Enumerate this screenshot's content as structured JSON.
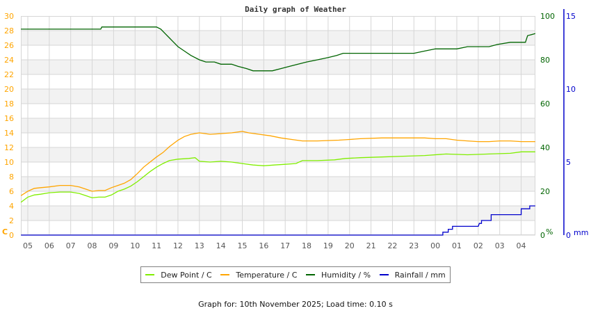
{
  "chart_data": {
    "type": "line",
    "title": "Daily graph of Weather",
    "x_axis": {
      "tick_labels": [
        "05",
        "06",
        "07",
        "08",
        "09",
        "10",
        "11",
        "12",
        "13",
        "14",
        "15",
        "16",
        "17",
        "18",
        "19",
        "20",
        "21",
        "22",
        "23",
        "00",
        "01",
        "02",
        "03",
        "04"
      ],
      "range_hours_from_05": [
        -0.32,
        23.66
      ]
    },
    "axes": {
      "temperature": {
        "label": "C",
        "side": "left",
        "ylim": [
          0,
          30
        ],
        "ticks": [
          0,
          2,
          4,
          6,
          8,
          10,
          12,
          14,
          16,
          18,
          20,
          22,
          24,
          26,
          28,
          30
        ],
        "color": "#ffa500"
      },
      "humidity": {
        "label": "%",
        "side": "right",
        "ylim": [
          0,
          100
        ],
        "ticks": [
          0,
          20,
          40,
          60,
          80,
          100
        ],
        "color": "#006400"
      },
      "rainfall": {
        "label": "mm",
        "side": "right",
        "ylim": [
          0,
          15
        ],
        "ticks": [
          0,
          5,
          10,
          15
        ],
        "color": "#0000cc"
      }
    },
    "grid": true,
    "legend_position": "bottom",
    "series": [
      {
        "name": "Dew Point / C",
        "axis": "temperature",
        "color": "#80ee00",
        "points": [
          [
            -0.32,
            4.5
          ],
          [
            0.0,
            5.2
          ],
          [
            0.3,
            5.5
          ],
          [
            0.6,
            5.6
          ],
          [
            1.0,
            5.8
          ],
          [
            1.5,
            5.9
          ],
          [
            2.0,
            5.9
          ],
          [
            2.4,
            5.7
          ],
          [
            2.7,
            5.4
          ],
          [
            3.0,
            5.1
          ],
          [
            3.3,
            5.2
          ],
          [
            3.6,
            5.2
          ],
          [
            3.9,
            5.5
          ],
          [
            4.2,
            6.0
          ],
          [
            4.5,
            6.3
          ],
          [
            4.8,
            6.7
          ],
          [
            5.1,
            7.3
          ],
          [
            5.4,
            8.0
          ],
          [
            5.7,
            8.7
          ],
          [
            6.0,
            9.3
          ],
          [
            6.3,
            9.8
          ],
          [
            6.6,
            10.2
          ],
          [
            7.0,
            10.4
          ],
          [
            7.5,
            10.5
          ],
          [
            7.8,
            10.6
          ],
          [
            8.0,
            10.1
          ],
          [
            8.5,
            10.0
          ],
          [
            9.0,
            10.1
          ],
          [
            9.5,
            10.0
          ],
          [
            10.0,
            9.8
          ],
          [
            10.5,
            9.6
          ],
          [
            11.0,
            9.5
          ],
          [
            11.5,
            9.6
          ],
          [
            12.0,
            9.7
          ],
          [
            12.5,
            9.8
          ],
          [
            12.8,
            10.2
          ],
          [
            13.5,
            10.2
          ],
          [
            14.3,
            10.3
          ],
          [
            14.8,
            10.5
          ],
          [
            15.5,
            10.6
          ],
          [
            16.5,
            10.7
          ],
          [
            17.5,
            10.8
          ],
          [
            18.5,
            10.9
          ],
          [
            19.5,
            11.1
          ],
          [
            20.5,
            11.0
          ],
          [
            21.5,
            11.1
          ],
          [
            22.5,
            11.2
          ],
          [
            23.0,
            11.4
          ],
          [
            23.66,
            11.4
          ]
        ]
      },
      {
        "name": "Temperature / C",
        "axis": "temperature",
        "color": "#ffa500",
        "points": [
          [
            -0.32,
            5.4
          ],
          [
            0.0,
            6.0
          ],
          [
            0.3,
            6.4
          ],
          [
            0.6,
            6.5
          ],
          [
            1.0,
            6.6
          ],
          [
            1.5,
            6.8
          ],
          [
            2.0,
            6.8
          ],
          [
            2.4,
            6.6
          ],
          [
            2.7,
            6.3
          ],
          [
            3.0,
            6.0
          ],
          [
            3.3,
            6.1
          ],
          [
            3.6,
            6.1
          ],
          [
            3.9,
            6.5
          ],
          [
            4.2,
            6.8
          ],
          [
            4.5,
            7.1
          ],
          [
            4.8,
            7.6
          ],
          [
            5.1,
            8.4
          ],
          [
            5.4,
            9.3
          ],
          [
            5.7,
            10.0
          ],
          [
            6.0,
            10.7
          ],
          [
            6.3,
            11.3
          ],
          [
            6.6,
            12.1
          ],
          [
            7.0,
            13.0
          ],
          [
            7.3,
            13.5
          ],
          [
            7.6,
            13.8
          ],
          [
            8.0,
            14.0
          ],
          [
            8.5,
            13.8
          ],
          [
            9.0,
            13.9
          ],
          [
            9.5,
            14.0
          ],
          [
            10.0,
            14.2
          ],
          [
            10.3,
            14.0
          ],
          [
            10.8,
            13.8
          ],
          [
            11.3,
            13.6
          ],
          [
            11.8,
            13.3
          ],
          [
            12.3,
            13.1
          ],
          [
            12.8,
            12.9
          ],
          [
            13.5,
            12.9
          ],
          [
            14.5,
            13.0
          ],
          [
            15.0,
            13.1
          ],
          [
            15.5,
            13.2
          ],
          [
            16.5,
            13.3
          ],
          [
            17.5,
            13.3
          ],
          [
            18.5,
            13.3
          ],
          [
            19.0,
            13.2
          ],
          [
            19.5,
            13.2
          ],
          [
            20.0,
            13.0
          ],
          [
            20.5,
            12.9
          ],
          [
            21.0,
            12.8
          ],
          [
            21.5,
            12.8
          ],
          [
            22.0,
            12.9
          ],
          [
            22.5,
            12.9
          ],
          [
            23.0,
            12.8
          ],
          [
            23.66,
            12.8
          ]
        ]
      },
      {
        "name": "Humidity / %",
        "axis": "humidity",
        "color": "#006400",
        "points": [
          [
            -0.32,
            94
          ],
          [
            3.4,
            94
          ],
          [
            3.45,
            95
          ],
          [
            6.0,
            95
          ],
          [
            6.2,
            94
          ],
          [
            6.4,
            92
          ],
          [
            6.6,
            90
          ],
          [
            6.8,
            88
          ],
          [
            7.0,
            86
          ],
          [
            7.3,
            84
          ],
          [
            7.6,
            82
          ],
          [
            8.0,
            80
          ],
          [
            8.3,
            79
          ],
          [
            8.7,
            79
          ],
          [
            9.0,
            78
          ],
          [
            9.5,
            78
          ],
          [
            9.8,
            77
          ],
          [
            10.2,
            76
          ],
          [
            10.5,
            75
          ],
          [
            11.4,
            75
          ],
          [
            11.8,
            76
          ],
          [
            12.2,
            77
          ],
          [
            12.6,
            78
          ],
          [
            13.0,
            79
          ],
          [
            13.5,
            80
          ],
          [
            14.0,
            81
          ],
          [
            14.4,
            82
          ],
          [
            14.7,
            83
          ],
          [
            16.0,
            83
          ],
          [
            17.0,
            83
          ],
          [
            18.0,
            83
          ],
          [
            18.5,
            84
          ],
          [
            19.0,
            85
          ],
          [
            20.0,
            85
          ],
          [
            20.5,
            86
          ],
          [
            21.5,
            86
          ],
          [
            21.9,
            87
          ],
          [
            22.5,
            88
          ],
          [
            23.2,
            88
          ],
          [
            23.3,
            91
          ],
          [
            23.66,
            92
          ]
        ]
      },
      {
        "name": "Rainfall / mm",
        "axis": "rainfall",
        "color": "#0000cc",
        "points": [
          [
            -0.32,
            0
          ],
          [
            19.35,
            0
          ],
          [
            19.35,
            0.2
          ],
          [
            19.6,
            0.2
          ],
          [
            19.6,
            0.4
          ],
          [
            19.8,
            0.4
          ],
          [
            19.8,
            0.6
          ],
          [
            21.0,
            0.6
          ],
          [
            21.05,
            0.8
          ],
          [
            21.15,
            0.8
          ],
          [
            21.15,
            1.0
          ],
          [
            21.6,
            1.0
          ],
          [
            21.6,
            1.4
          ],
          [
            23.0,
            1.4
          ],
          [
            23.0,
            1.8
          ],
          [
            23.4,
            1.8
          ],
          [
            23.4,
            2.0
          ],
          [
            23.66,
            2.0
          ]
        ]
      }
    ]
  },
  "legend": {
    "items": [
      {
        "label": "Dew Point / C",
        "color": "#80ee00"
      },
      {
        "label": "Temperature / C",
        "color": "#ffa500"
      },
      {
        "label": "Humidity / %",
        "color": "#006400"
      },
      {
        "label": "Rainfall / mm",
        "color": "#0000cc"
      }
    ]
  },
  "footer": {
    "text": "Graph for: 10th November 2025; Load time: 0.10 s"
  }
}
